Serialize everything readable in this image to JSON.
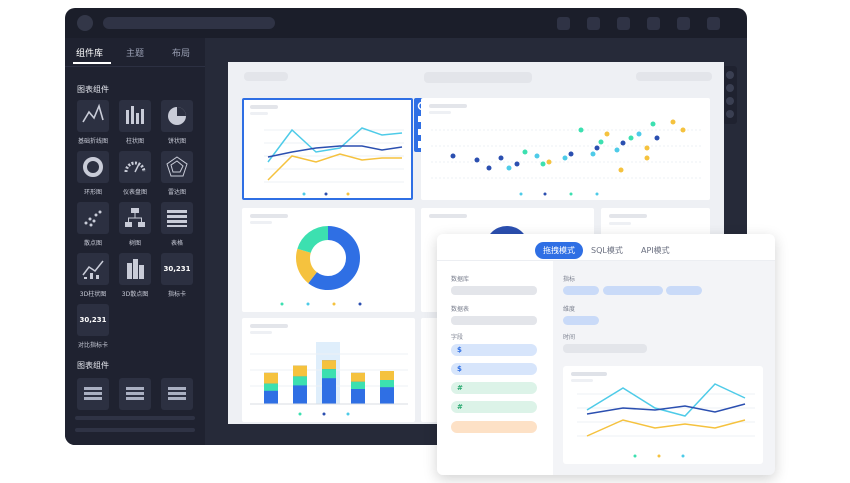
{
  "sidebar": {
    "tabs": [
      "组件库",
      "主题",
      "布局"
    ],
    "sections": [
      {
        "title": "图表组件",
        "items": [
          {
            "label": "基础折线图"
          },
          {
            "label": "柱状图"
          },
          {
            "label": "饼状图"
          },
          {
            "label": "环形图"
          },
          {
            "label": "仪表盘图"
          },
          {
            "label": "雷达图"
          },
          {
            "label": "散点图"
          },
          {
            "label": "树图"
          },
          {
            "label": "表格"
          },
          {
            "label": "3D柱状图"
          },
          {
            "label": "3D散点图"
          },
          {
            "label": "指标卡",
            "icon_text": "30,231"
          },
          {
            "label": "对比指标卡",
            "icon_text": "30,231"
          }
        ]
      },
      {
        "title": "图表组件"
      }
    ]
  },
  "popup": {
    "tabs": [
      "拖拽模式",
      "SQL模式",
      "API模式"
    ],
    "left_labels": [
      "数据库",
      "数据表",
      "字段"
    ],
    "fields": [
      "$",
      "$",
      "#",
      "#"
    ],
    "right_labels": [
      "指标",
      "维度",
      "时间"
    ]
  }
}
